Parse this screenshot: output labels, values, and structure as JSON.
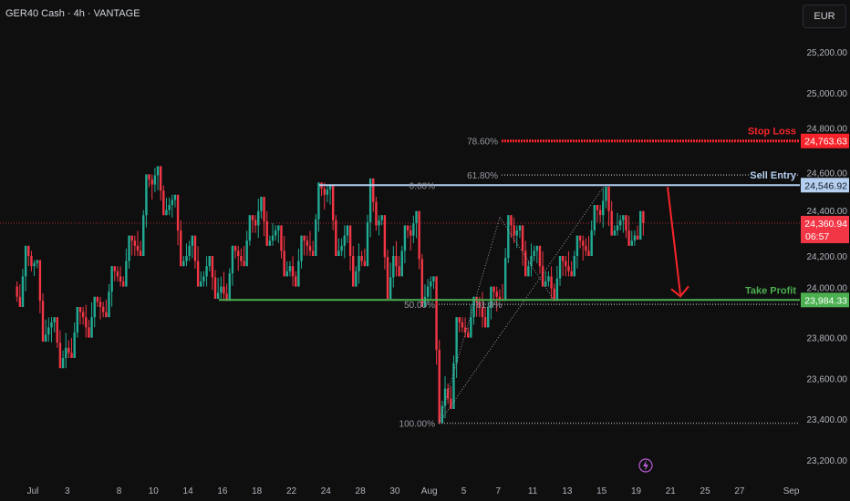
{
  "header": {
    "symbol_title": "GER40 Cash · 4h · VANTAGE",
    "currency_button": "EUR"
  },
  "colors": {
    "background": "#0f0f0f",
    "up": "#22ab94",
    "down": "#f23645",
    "stop_loss": "#f7252b",
    "sell_entry": "#b4cff0",
    "take_profit": "#4caf50",
    "fib": "#9598a1",
    "current_price": "#f23645",
    "lightning": "#b65cd6"
  },
  "icons": {
    "lightning": "lightning-bolt-icon",
    "arrow": "down-arrow-icon"
  },
  "chart_data": {
    "type": "candlestick",
    "title": "GER40 Cash · 4h · VANTAGE",
    "timeframe": "4h",
    "ylim": [
      23150,
      25300
    ],
    "y_ticks": [
      "25,200.00",
      "25,000.00",
      "24,800.00",
      "24,600.00",
      "24,400.00",
      "24,200.00",
      "24,000.00",
      "23,800.00",
      "23,600.00",
      "23,400.00",
      "23,200.00"
    ],
    "y_tick_values": [
      25200,
      25000,
      24800,
      24600,
      24400,
      24200,
      24000,
      23800,
      23600,
      23400,
      23200
    ],
    "x_ticks": [
      {
        "label": "Jul",
        "date": "2025-07-01"
      },
      {
        "label": "3",
        "date": "2025-07-03"
      },
      {
        "label": "8",
        "date": "2025-07-08"
      },
      {
        "label": "10",
        "date": "2025-07-10"
      },
      {
        "label": "14",
        "date": "2025-07-14"
      },
      {
        "label": "16",
        "date": "2025-07-16"
      },
      {
        "label": "18",
        "date": "2025-07-18"
      },
      {
        "label": "22",
        "date": "2025-07-22"
      },
      {
        "label": "24",
        "date": "2025-07-24"
      },
      {
        "label": "28",
        "date": "2025-07-28"
      },
      {
        "label": "30",
        "date": "2025-07-30"
      },
      {
        "label": "Aug",
        "date": "2025-08-01"
      },
      {
        "label": "5",
        "date": "2025-08-05"
      },
      {
        "label": "7",
        "date": "2025-08-07"
      },
      {
        "label": "11",
        "date": "2025-08-11"
      },
      {
        "label": "13",
        "date": "2025-08-13"
      },
      {
        "label": "15",
        "date": "2025-08-15"
      },
      {
        "label": "19",
        "date": "2025-08-19"
      },
      {
        "label": "21",
        "date": "2025-08-21"
      },
      {
        "label": "25",
        "date": "2025-08-25"
      },
      {
        "label": "27",
        "date": "2025-08-27"
      },
      {
        "label": "Sep",
        "date": "2025-09-01"
      }
    ],
    "daily_ohlc": [
      {
        "date": "2025-06-30",
        "o": 24050,
        "h": 24250,
        "l": 23950,
        "c": 24150
      },
      {
        "date": "2025-07-01",
        "o": 24150,
        "h": 24180,
        "l": 23780,
        "c": 23850
      },
      {
        "date": "2025-07-02",
        "o": 23850,
        "h": 23900,
        "l": 23650,
        "c": 23750
      },
      {
        "date": "2025-07-03",
        "o": 23750,
        "h": 23950,
        "l": 23700,
        "c": 23900
      },
      {
        "date": "2025-07-04",
        "o": 23900,
        "h": 24000,
        "l": 23800,
        "c": 23950
      },
      {
        "date": "2025-07-07",
        "o": 23950,
        "h": 24150,
        "l": 23900,
        "c": 24100
      },
      {
        "date": "2025-07-08",
        "o": 24100,
        "h": 24300,
        "l": 24050,
        "c": 24250
      },
      {
        "date": "2025-07-09",
        "o": 24250,
        "h": 24600,
        "l": 24200,
        "c": 24550
      },
      {
        "date": "2025-07-10",
        "o": 24550,
        "h": 24640,
        "l": 24400,
        "c": 24450
      },
      {
        "date": "2025-07-11",
        "o": 24450,
        "h": 24500,
        "l": 24150,
        "c": 24200
      },
      {
        "date": "2025-07-14",
        "o": 24200,
        "h": 24300,
        "l": 24050,
        "c": 24100
      },
      {
        "date": "2025-07-15",
        "o": 24100,
        "h": 24200,
        "l": 23990,
        "c": 24050
      },
      {
        "date": "2025-07-16",
        "o": 24050,
        "h": 24250,
        "l": 23980,
        "c": 24200
      },
      {
        "date": "2025-07-17",
        "o": 24200,
        "h": 24400,
        "l": 24150,
        "c": 24350
      },
      {
        "date": "2025-07-18",
        "o": 24350,
        "h": 24490,
        "l": 24250,
        "c": 24300
      },
      {
        "date": "2025-07-21",
        "o": 24300,
        "h": 24350,
        "l": 24100,
        "c": 24150
      },
      {
        "date": "2025-07-22",
        "o": 24150,
        "h": 24300,
        "l": 24050,
        "c": 24250
      },
      {
        "date": "2025-07-23",
        "o": 24250,
        "h": 24560,
        "l": 24200,
        "c": 24500
      },
      {
        "date": "2025-07-24",
        "o": 24500,
        "h": 24550,
        "l": 24200,
        "c": 24250
      },
      {
        "date": "2025-07-25",
        "o": 24250,
        "h": 24350,
        "l": 24050,
        "c": 24200
      },
      {
        "date": "2025-07-28",
        "o": 24200,
        "h": 24580,
        "l": 24150,
        "c": 24350
      },
      {
        "date": "2025-07-29",
        "o": 24350,
        "h": 24400,
        "l": 23990,
        "c": 24200
      },
      {
        "date": "2025-07-30",
        "o": 24200,
        "h": 24350,
        "l": 24100,
        "c": 24300
      },
      {
        "date": "2025-07-31",
        "o": 24300,
        "h": 24420,
        "l": 23950,
        "c": 24050
      },
      {
        "date": "2025-08-01",
        "o": 24050,
        "h": 24100,
        "l": 23380,
        "c": 23550
      },
      {
        "date": "2025-08-04",
        "o": 23550,
        "h": 23900,
        "l": 23450,
        "c": 23850
      },
      {
        "date": "2025-08-05",
        "o": 23850,
        "h": 24000,
        "l": 23800,
        "c": 23950
      },
      {
        "date": "2025-08-06",
        "o": 23950,
        "h": 24050,
        "l": 23850,
        "c": 24000
      },
      {
        "date": "2025-08-07",
        "o": 24000,
        "h": 24400,
        "l": 23980,
        "c": 24300
      },
      {
        "date": "2025-08-08",
        "o": 24300,
        "h": 24350,
        "l": 24100,
        "c": 24200
      },
      {
        "date": "2025-08-11",
        "o": 24200,
        "h": 24250,
        "l": 24050,
        "c": 24100
      },
      {
        "date": "2025-08-12",
        "o": 24100,
        "h": 24200,
        "l": 23980,
        "c": 24150
      },
      {
        "date": "2025-08-13",
        "o": 24150,
        "h": 24300,
        "l": 24100,
        "c": 24250
      },
      {
        "date": "2025-08-14",
        "o": 24250,
        "h": 24450,
        "l": 24200,
        "c": 24400
      },
      {
        "date": "2025-08-15",
        "o": 24400,
        "h": 24540,
        "l": 24300,
        "c": 24350
      },
      {
        "date": "2025-08-18",
        "o": 24350,
        "h": 24400,
        "l": 24250,
        "c": 24300
      },
      {
        "date": "2025-08-19",
        "o": 24300,
        "h": 24420,
        "l": 24280,
        "c": 24360.94
      }
    ],
    "levels": {
      "stop_loss": {
        "label": "Stop Loss",
        "price": 24763.63,
        "price_label": "24,763.63",
        "fib_label": "78.60%"
      },
      "sell_entry": {
        "label": "Sell Entry",
        "price": 24546.92,
        "price_label": "24,546.92",
        "fib_label": "61.80%",
        "fib_price": 24597
      },
      "take_profit": {
        "label": "Take Profit",
        "price": 23984.33,
        "price_label": "23,984.33"
      },
      "current": {
        "price": 24360.94,
        "price_label": "24,360.94",
        "countdown": "06:57"
      }
    },
    "fib": {
      "levels": [
        {
          "label": "0.00%",
          "price": 24546.92
        },
        {
          "label": "50.00%",
          "price": 23963
        },
        {
          "label": "100.00%",
          "price": 23380
        }
      ],
      "inner_label": "61.8%"
    }
  }
}
